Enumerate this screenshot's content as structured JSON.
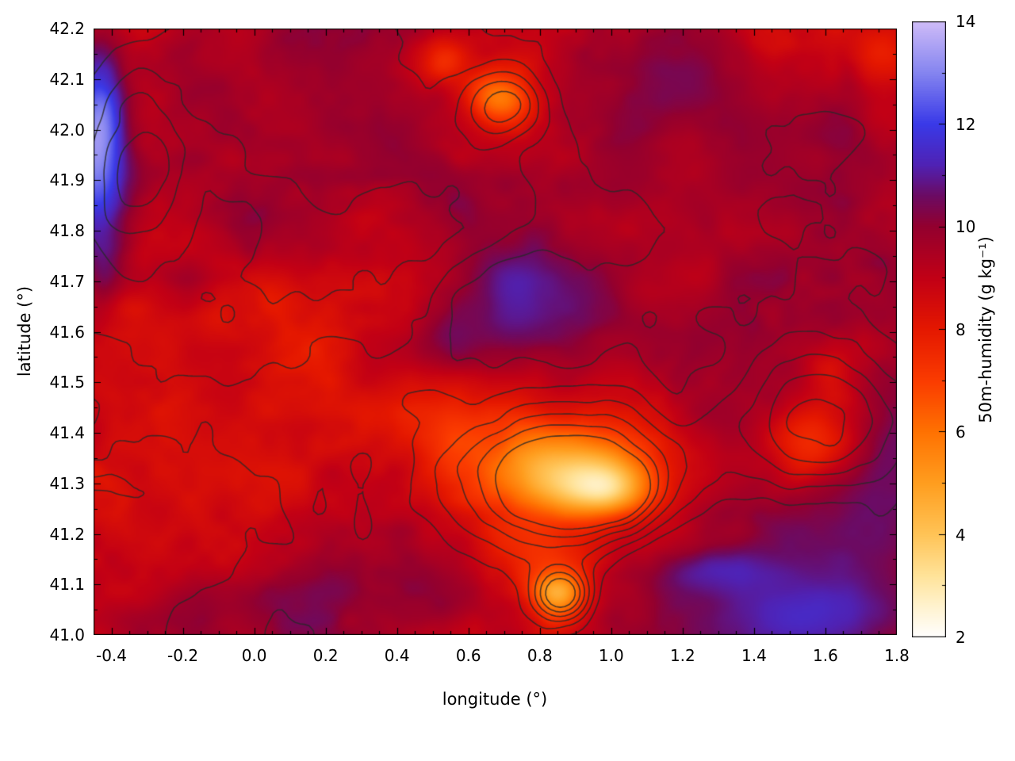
{
  "figure": {
    "background": "#ffffff"
  },
  "chart_data": {
    "type": "heatmap",
    "title": "",
    "xlabel": "longitude (°)",
    "ylabel": "latitude (°)",
    "colorbar_label": "50m-humidity (g kg⁻¹)",
    "x_range": [
      -0.45,
      1.8
    ],
    "y_range": [
      41.0,
      42.2
    ],
    "x_ticks": [
      -0.4,
      -0.2,
      0.0,
      0.2,
      0.4,
      0.6,
      0.8,
      1.0,
      1.2,
      1.4,
      1.6,
      1.8
    ],
    "x_tick_labels": [
      "-0.4",
      "-0.2",
      "0.0",
      "0.2",
      "0.4",
      "0.6",
      "0.8",
      "1.0",
      "1.2",
      "1.4",
      "1.6",
      "1.8"
    ],
    "y_ticks": [
      41.0,
      41.1,
      41.2,
      41.3,
      41.4,
      41.5,
      41.6,
      41.7,
      41.8,
      41.9,
      42.0,
      42.1,
      42.2
    ],
    "y_tick_labels": [
      "41.0",
      "41.1",
      "41.2",
      "41.3",
      "41.4",
      "41.5",
      "41.6",
      "41.7",
      "41.8",
      "41.9",
      "42.0",
      "42.1",
      "42.2"
    ],
    "x_minor_step": 0.05,
    "y_minor_step": 0.05,
    "colorbar_range": [
      2,
      14
    ],
    "colorbar_ticks": [
      2,
      4,
      6,
      8,
      10,
      12,
      14
    ],
    "colorbar_tick_labels": [
      "2",
      "4",
      "6",
      "8",
      "10",
      "12",
      "14"
    ],
    "colorbar_minor_step": 1,
    "grid": false,
    "legend": "colorbar-right",
    "palette": [
      [
        2.0,
        "#ffffff"
      ],
      [
        2.6,
        "#fff3cf"
      ],
      [
        3.2,
        "#ffe399"
      ],
      [
        4.0,
        "#ffc457"
      ],
      [
        5.0,
        "#ff9e1f"
      ],
      [
        6.0,
        "#ff7202"
      ],
      [
        7.0,
        "#fb3c00"
      ],
      [
        8.0,
        "#e51800"
      ],
      [
        9.0,
        "#c20016"
      ],
      [
        10.0,
        "#94002f"
      ],
      [
        10.6,
        "#6c0b63"
      ],
      [
        11.2,
        "#5022b4"
      ],
      [
        12.0,
        "#3a3ae8"
      ],
      [
        13.0,
        "#8585f0"
      ],
      [
        14.0,
        "#cfbcf8"
      ]
    ],
    "contour_color": "rgba(40,40,40,0.8)",
    "contour_levels": [
      0.28,
      0.4,
      0.52,
      0.64,
      0.76,
      0.88
    ],
    "field_model": {
      "note": "procedural approximation of the humidity field (g/kg) visible in the plot",
      "seeds": [
        11,
        29,
        47
      ],
      "base": 9.2,
      "tilt_x": 0.4,
      "amp_large": 1.9,
      "freq_large": 3.2,
      "amp_small": 0.9,
      "freq_small": 11.0,
      "features": [
        {
          "lon": -0.44,
          "lat": 41.98,
          "sx": 0.085,
          "sy": 0.19,
          "value": 13.5,
          "strength": 0.97,
          "jitter": 0.03
        },
        {
          "lon": -0.44,
          "lat": 41.72,
          "sx": 0.06,
          "sy": 0.1,
          "value": 11.6,
          "strength": 0.6,
          "jitter": 0.05
        },
        {
          "lon": 0.75,
          "lat": 41.66,
          "sx": 0.22,
          "sy": 0.13,
          "value": 11.6,
          "strength": 0.85,
          "jitter": 0.09
        },
        {
          "lon": 0.54,
          "lat": 41.57,
          "sx": 0.14,
          "sy": 0.08,
          "value": 11.2,
          "strength": 0.7,
          "jitter": 0.09
        },
        {
          "lon": 0.88,
          "lat": 41.33,
          "sx": 0.27,
          "sy": 0.11,
          "value": 3.6,
          "strength": 0.85,
          "jitter": 0.06
        },
        {
          "lon": 0.97,
          "lat": 41.3,
          "sx": 0.13,
          "sy": 0.05,
          "value": 2.3,
          "strength": 0.9,
          "jitter": 0.04
        },
        {
          "lon": 0.56,
          "lat": 41.38,
          "sx": 0.12,
          "sy": 0.07,
          "value": 6.0,
          "strength": 0.55,
          "jitter": 0.07
        },
        {
          "lon": 0.86,
          "lat": 41.09,
          "sx": 0.075,
          "sy": 0.055,
          "value": 3.0,
          "strength": 0.85,
          "jitter": 0.04
        },
        {
          "lon": 0.8,
          "lat": 41.17,
          "sx": 0.18,
          "sy": 0.055,
          "value": 6.8,
          "strength": 0.5,
          "jitter": 0.06
        },
        {
          "lon": 0.7,
          "lat": 42.06,
          "sx": 0.1,
          "sy": 0.06,
          "value": 4.6,
          "strength": 0.8,
          "jitter": 0.05
        },
        {
          "lon": 0.54,
          "lat": 42.13,
          "sx": 0.07,
          "sy": 0.05,
          "value": 6.0,
          "strength": 0.6,
          "jitter": 0.05
        },
        {
          "lon": 1.5,
          "lat": 41.07,
          "sx": 0.4,
          "sy": 0.15,
          "value": 11.0,
          "strength": 0.8,
          "jitter": 0.1
        },
        {
          "lon": 1.72,
          "lat": 41.25,
          "sx": 0.25,
          "sy": 0.18,
          "value": 11.1,
          "strength": 0.6,
          "jitter": 0.1
        },
        {
          "lon": 1.55,
          "lat": 41.03,
          "sx": 0.25,
          "sy": 0.06,
          "value": 12.3,
          "strength": 0.5,
          "jitter": 0.08
        },
        {
          "lon": 1.3,
          "lat": 41.12,
          "sx": 0.18,
          "sy": 0.045,
          "value": 12.2,
          "strength": 0.45,
          "jitter": 0.08
        },
        {
          "lon": 1.55,
          "lat": 41.38,
          "sx": 0.14,
          "sy": 0.09,
          "value": 5.8,
          "strength": 0.6,
          "jitter": 0.07
        },
        {
          "lon": 1.63,
          "lat": 41.52,
          "sx": 0.1,
          "sy": 0.08,
          "value": 6.8,
          "strength": 0.5,
          "jitter": 0.07
        },
        {
          "lon": 1.2,
          "lat": 42.1,
          "sx": 0.2,
          "sy": 0.12,
          "value": 10.8,
          "strength": 0.55,
          "jitter": 0.09
        },
        {
          "lon": 1.45,
          "lat": 41.95,
          "sx": 0.18,
          "sy": 0.12,
          "value": 10.5,
          "strength": 0.45,
          "jitter": 0.09
        },
        {
          "lon": 1.05,
          "lat": 41.95,
          "sx": 0.12,
          "sy": 0.12,
          "value": 10.9,
          "strength": 0.55,
          "jitter": 0.08
        },
        {
          "lon": 1.25,
          "lat": 41.55,
          "sx": 0.15,
          "sy": 0.2,
          "value": 10.2,
          "strength": 0.4,
          "jitter": 0.1
        },
        {
          "lon": 0.15,
          "lat": 41.07,
          "sx": 0.16,
          "sy": 0.065,
          "value": 10.8,
          "strength": 0.6,
          "jitter": 0.07
        },
        {
          "lon": -0.18,
          "lat": 41.08,
          "sx": 0.1,
          "sy": 0.06,
          "value": 10.6,
          "strength": 0.55,
          "jitter": 0.06
        },
        {
          "lon": 0.45,
          "lat": 41.1,
          "sx": 0.1,
          "sy": 0.07,
          "value": 10.5,
          "strength": 0.5,
          "jitter": 0.06
        },
        {
          "lon": 0.55,
          "lat": 41.06,
          "sx": 0.1,
          "sy": 0.05,
          "value": 10.4,
          "strength": 0.45,
          "jitter": 0.06
        },
        {
          "lon": 0.08,
          "lat": 41.67,
          "sx": 0.08,
          "sy": 0.05,
          "value": 7.2,
          "strength": 0.5,
          "jitter": 0.06
        },
        {
          "lon": 0.42,
          "lat": 41.44,
          "sx": 0.09,
          "sy": 0.05,
          "value": 7.0,
          "strength": 0.5,
          "jitter": 0.06
        },
        {
          "lon": -0.12,
          "lat": 41.63,
          "sx": 0.07,
          "sy": 0.04,
          "value": 7.3,
          "strength": 0.45,
          "jitter": 0.05
        },
        {
          "lon": 1.76,
          "lat": 42.15,
          "sx": 0.08,
          "sy": 0.06,
          "value": 6.5,
          "strength": 0.5,
          "jitter": 0.05
        },
        {
          "lon": 0.7,
          "lat": 41.47,
          "sx": 0.3,
          "sy": 0.05,
          "value": 8.3,
          "strength": 0.35,
          "jitter": 0.06
        },
        {
          "lon": -0.1,
          "lat": 41.45,
          "sx": 0.3,
          "sy": 0.25,
          "value": 8.7,
          "strength": 0.3,
          "jitter": 0.08
        },
        {
          "lon": 0.35,
          "lat": 42.0,
          "sx": 0.3,
          "sy": 0.15,
          "value": 8.7,
          "strength": 0.3,
          "jitter": 0.08
        },
        {
          "lon": 1.15,
          "lat": 41.75,
          "sx": 0.2,
          "sy": 0.15,
          "value": 8.4,
          "strength": 0.35,
          "jitter": 0.08
        },
        {
          "lon": 1.65,
          "lat": 42.0,
          "sx": 0.1,
          "sy": 0.1,
          "value": 11.6,
          "strength": 0.4,
          "jitter": 0.07
        }
      ]
    },
    "contour_model": {
      "note": "procedural approximation of the overlaid terrain contour lines",
      "seed": 77,
      "noise_amp": 0.6,
      "freq": 3.6,
      "bumps": [
        {
          "lon": 0.88,
          "lat": 41.31,
          "sx": 0.3,
          "sy": 0.13,
          "h": 1.0
        },
        {
          "lon": 0.99,
          "lat": 41.28,
          "sx": 0.1,
          "sy": 0.05,
          "h": 0.5
        },
        {
          "lon": 0.86,
          "lat": 41.08,
          "sx": 0.08,
          "sy": 0.05,
          "h": 0.8
        },
        {
          "lon": 1.57,
          "lat": 41.42,
          "sx": 0.22,
          "sy": 0.13,
          "h": 0.6
        },
        {
          "lon": 0.7,
          "lat": 42.05,
          "sx": 0.12,
          "sy": 0.07,
          "h": 0.55
        },
        {
          "lon": -0.33,
          "lat": 41.93,
          "sx": 0.14,
          "sy": 0.18,
          "h": 0.45
        },
        {
          "lon": 0.2,
          "lat": 41.72,
          "sx": 0.5,
          "sy": 0.3,
          "h": 0.3
        },
        {
          "lon": 1.45,
          "lat": 41.06,
          "sx": 0.45,
          "sy": 0.16,
          "h": -0.4
        },
        {
          "lon": 0.73,
          "lat": 41.65,
          "sx": 0.22,
          "sy": 0.11,
          "h": -0.35
        },
        {
          "lon": 1.15,
          "lat": 42.05,
          "sx": 0.3,
          "sy": 0.15,
          "h": -0.2
        }
      ]
    }
  }
}
